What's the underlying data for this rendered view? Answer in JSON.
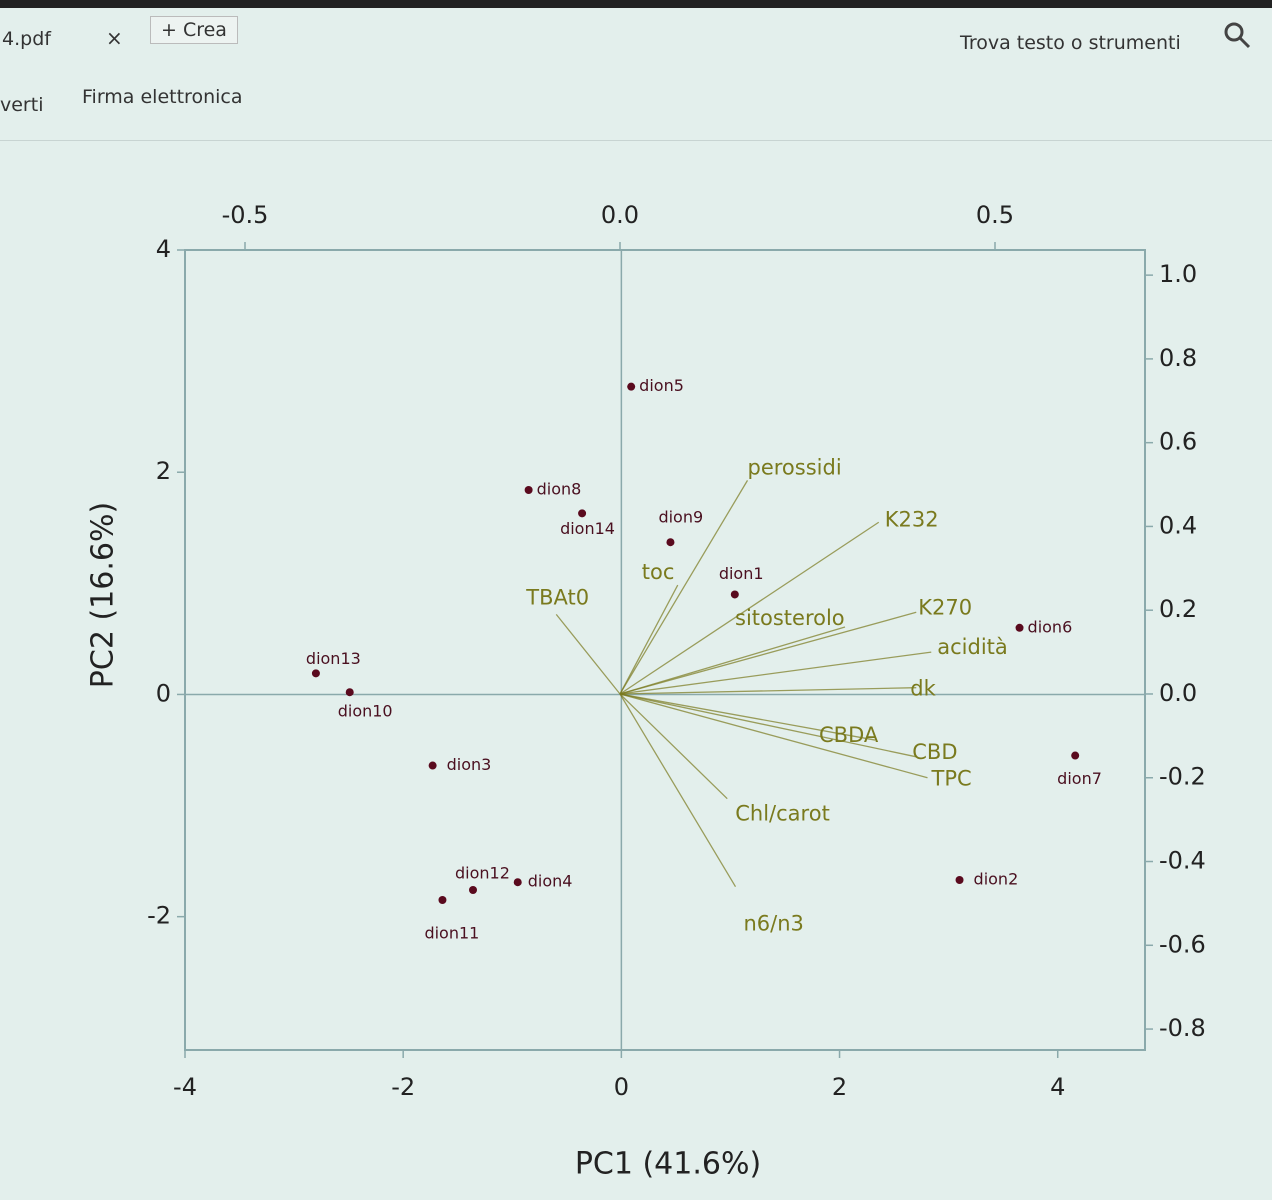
{
  "ui": {
    "tab": "4.pdf",
    "close": "×",
    "new_tab": "+ Crea",
    "search": "Trova testo o strumenti",
    "menu": [
      "verti",
      "Firma elettronica"
    ]
  },
  "chart_data": {
    "type": "biplot",
    "xlabel": "PC1 (41.6%)",
    "ylabel": "PC2 (16.6%)",
    "xlim": [
      -4,
      4.8
    ],
    "ylim": [
      -3.2,
      4.0
    ],
    "xticks": [
      -4,
      -2,
      0,
      2,
      4
    ],
    "yticks": [
      -2,
      0,
      2,
      4
    ],
    "x2lim": [
      -0.58,
      0.7
    ],
    "y2lim": [
      -0.85,
      1.06
    ],
    "x2ticks": [
      -0.5,
      {
        "value": 0,
        "label": "0.0"
      },
      0.5
    ],
    "y2ticks": [
      -0.8,
      -0.6,
      -0.4,
      -0.2,
      {
        "value": 0,
        "label": "0.0"
      },
      0.2,
      0.4,
      0.6,
      0.8,
      {
        "value": 1,
        "label": "1.0"
      }
    ],
    "point_color": "#5a0a1e",
    "loading_color": "#7a7a1e",
    "points": [
      {
        "label": "dion5",
        "x": 0.09,
        "y": 2.77
      },
      {
        "label": "dion8",
        "x": -0.85,
        "y": 1.84
      },
      {
        "label": "dion14",
        "x": -0.36,
        "y": 1.63
      },
      {
        "label": "dion9",
        "x": 0.45,
        "y": 1.37
      },
      {
        "label": "dion1",
        "x": 1.04,
        "y": 0.9
      },
      {
        "label": "dion6",
        "x": 3.65,
        "y": 0.6
      },
      {
        "label": "dion13",
        "x": -2.8,
        "y": 0.19
      },
      {
        "label": "dion10",
        "x": -2.49,
        "y": 0.02
      },
      {
        "label": "dion3",
        "x": -1.73,
        "y": -0.64
      },
      {
        "label": "dion7",
        "x": 4.16,
        "y": -0.55
      },
      {
        "label": "dion12",
        "x": -1.36,
        "y": -1.76
      },
      {
        "label": "dion4",
        "x": -0.95,
        "y": -1.69
      },
      {
        "label": "dion11",
        "x": -1.64,
        "y": -1.85
      },
      {
        "label": "dion2",
        "x": 3.1,
        "y": -1.67
      }
    ],
    "loadings": [
      {
        "label": "perossidi",
        "x": 0.17,
        "y": 0.51
      },
      {
        "label": "K232",
        "x": 0.345,
        "y": 0.41
      },
      {
        "label": "K270",
        "x": 0.395,
        "y": 0.195
      },
      {
        "label": "sitosterolo",
        "x": 0.3,
        "y": 0.16
      },
      {
        "label": "acidità",
        "x": 0.415,
        "y": 0.1
      },
      {
        "label": "dk",
        "x": 0.395,
        "y": 0.015
      },
      {
        "label": "CBDA",
        "x": 0.34,
        "y": -0.11
      },
      {
        "label": "CBD",
        "x": 0.395,
        "y": -0.15
      },
      {
        "label": "TPC",
        "x": 0.41,
        "y": -0.2
      },
      {
        "label": "toc",
        "x": 0.077,
        "y": 0.26
      },
      {
        "label": "TBAt0",
        "x": -0.085,
        "y": 0.19
      },
      {
        "label": "Chl/carot",
        "x": 0.143,
        "y": -0.25
      },
      {
        "label": "n6/n3",
        "x": 0.154,
        "y": -0.46
      }
    ]
  }
}
